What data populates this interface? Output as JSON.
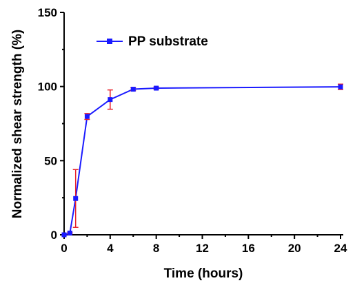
{
  "chart_data": {
    "type": "line",
    "xlabel": "Time (hours)",
    "ylabel": "Normalized shear strength (%)",
    "xlim": [
      0,
      24
    ],
    "ylim": [
      0,
      150
    ],
    "xticks": [
      0,
      4,
      8,
      12,
      16,
      20,
      24
    ],
    "yticks": [
      0,
      50,
      100,
      150
    ],
    "grid": false,
    "legend_position": "top-left",
    "colors": {
      "line": "#1a1aff",
      "marker": "#1a1aff",
      "error_bar": "#e8202a"
    },
    "series": [
      {
        "name": "PP substrate",
        "x": [
          0,
          0.5,
          1,
          2,
          4,
          6,
          8,
          24
        ],
        "y": [
          0,
          1.2,
          24.5,
          79.8,
          91.2,
          98.2,
          98.9,
          99.8
        ],
        "error": [
          0,
          0.5,
          19.5,
          2.0,
          6.5,
          1.0,
          0.8,
          1.8
        ]
      }
    ]
  }
}
